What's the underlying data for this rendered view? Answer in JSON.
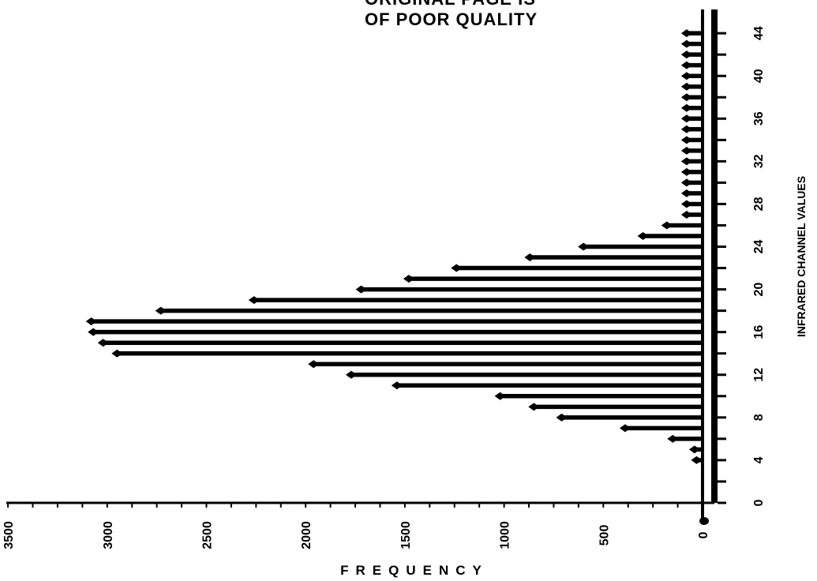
{
  "stamp": {
    "line1": "ORIGINAL PAGE IS",
    "line2": "OF POOR QUALITY"
  },
  "chart_data": {
    "type": "bar",
    "orientation": "horizontal",
    "xlabel": "FREQUENCY",
    "ylabel": "INFRARED CHANNEL VALUES",
    "xlim": [
      0,
      3500
    ],
    "ylim": [
      0,
      44
    ],
    "x_ticks": [
      0,
      500,
      1000,
      1500,
      2000,
      2500,
      3000,
      3500
    ],
    "y_ticks": [
      0,
      4,
      8,
      12,
      16,
      20,
      24,
      28,
      32,
      36,
      40,
      44
    ],
    "categories": [
      4,
      5,
      6,
      7,
      8,
      9,
      10,
      11,
      12,
      13,
      14,
      15,
      16,
      17,
      18,
      19,
      20,
      21,
      22,
      23,
      24,
      25,
      26,
      27,
      28,
      29,
      30,
      31,
      32,
      33,
      34,
      35,
      36,
      37,
      38,
      39,
      40,
      41,
      42,
      43,
      44
    ],
    "values": [
      30,
      40,
      150,
      390,
      710,
      850,
      1020,
      1540,
      1770,
      1960,
      2950,
      3020,
      3070,
      3080,
      2730,
      2260,
      1720,
      1480,
      1240,
      870,
      600,
      300,
      180,
      80,
      80,
      80,
      80,
      80,
      80,
      80,
      80,
      80,
      80,
      80,
      80,
      80,
      80,
      80,
      80,
      80,
      80
    ],
    "grid": false,
    "legend": "none"
  }
}
